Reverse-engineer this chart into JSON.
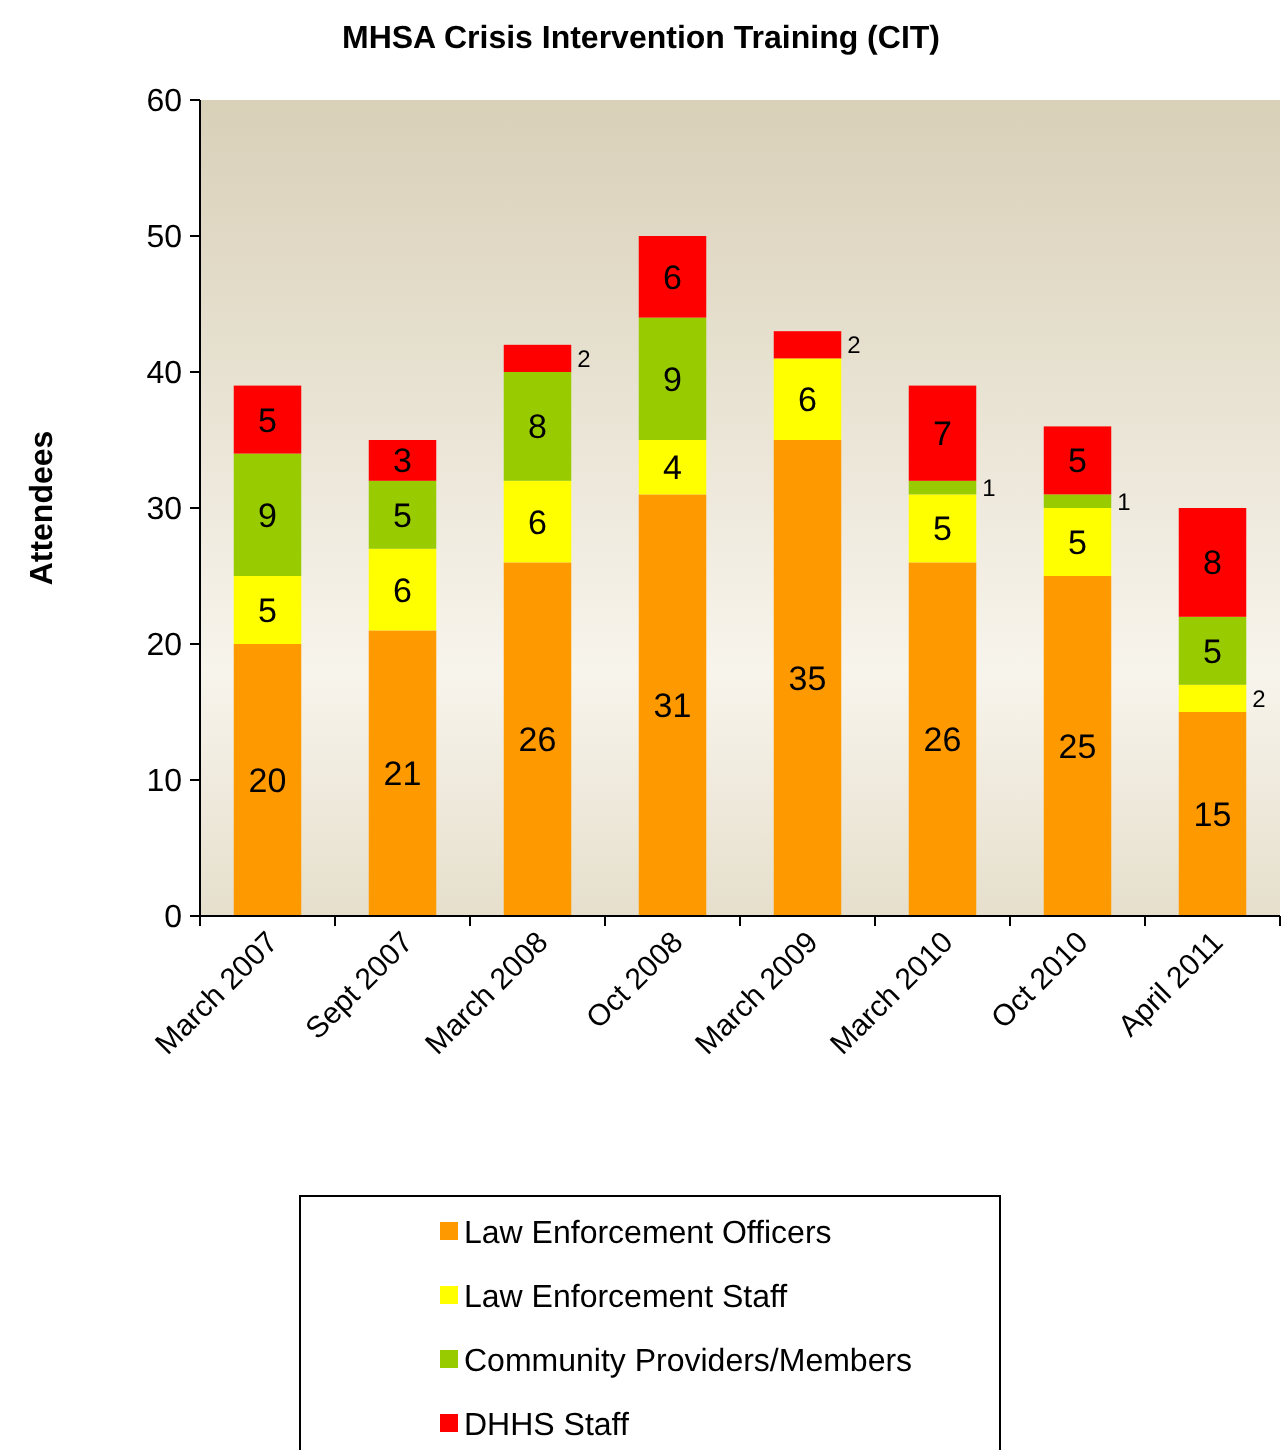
{
  "chart_data": {
    "type": "bar",
    "title": "MHSA Crisis Intervention Training (CIT)",
    "ylabel": "Attendees",
    "categories": [
      "March 2007",
      "Sept 2007",
      "March 2008",
      "Oct 2008",
      "March 2009",
      "March 2010",
      "Oct 2010",
      "April 2011"
    ],
    "stacked": true,
    "ylim": [
      0,
      60
    ],
    "yticks": [
      0,
      10,
      20,
      30,
      40,
      50,
      60
    ],
    "grid": false,
    "legend": "bottom",
    "series": [
      {
        "name": "Law Enforcement Officers",
        "color": "#ff9900",
        "values": [
          20,
          21,
          26,
          31,
          35,
          26,
          25,
          15
        ],
        "value_labels": [
          "20",
          "21",
          "26",
          "31",
          "35",
          "26",
          "25",
          "15"
        ]
      },
      {
        "name": "Law Enforcement Staff",
        "color": "#ffff00",
        "values": [
          5,
          6,
          6,
          4,
          6,
          5,
          5,
          2
        ],
        "value_labels": [
          "5",
          "6",
          "6",
          "4",
          "6",
          "5",
          "5",
          "2"
        ]
      },
      {
        "name": "Community Providers/Members",
        "color": "#99cc00",
        "values": [
          9,
          5,
          8,
          9,
          0,
          1,
          1,
          5
        ],
        "value_labels": [
          "9",
          "5",
          "8",
          "9",
          null,
          "1",
          "1",
          "5"
        ]
      },
      {
        "name": "DHHS Staff",
        "color": "#ff0000",
        "values": [
          5,
          3,
          2,
          6,
          2,
          7,
          5,
          8
        ],
        "value_labels": [
          "5",
          "3",
          "2",
          "6",
          "2",
          "7",
          "5",
          "8"
        ]
      }
    ]
  }
}
